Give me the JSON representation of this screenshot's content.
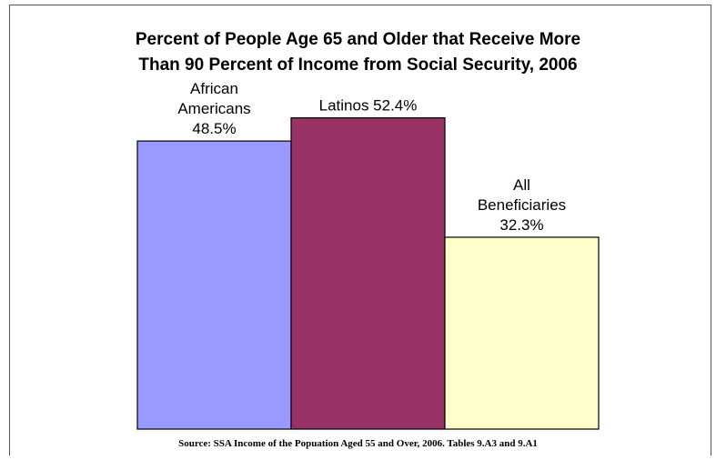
{
  "chart_data": {
    "type": "bar",
    "title": "Percent of People Age 65 and Older that Receive More Than 90 Percent of Income from Social Security, 2006",
    "title_lines": [
      "Percent of People Age 65 and Older that Receive More",
      "Than 90 Percent of Income from Social Security, 2006"
    ],
    "categories": [
      "African Americans",
      "Latinos",
      "All Beneficiaries"
    ],
    "values": [
      48.5,
      52.4,
      32.3
    ],
    "data_labels": [
      [
        "African",
        "Americans",
        "48.5%"
      ],
      [
        "Latinos 52.4%"
      ],
      [
        "All",
        "Beneficiaries",
        "32.3%"
      ]
    ],
    "colors": [
      "#9999ff",
      "#993366",
      "#ffffcc"
    ],
    "ylim": [
      0,
      60
    ],
    "xlabel": "",
    "ylabel": "",
    "grid": false,
    "legend": "none",
    "source": "Source: SSA Income of the Popuation Aged 55 and Over, 2006. Tables 9.A3 and 9.A1"
  }
}
